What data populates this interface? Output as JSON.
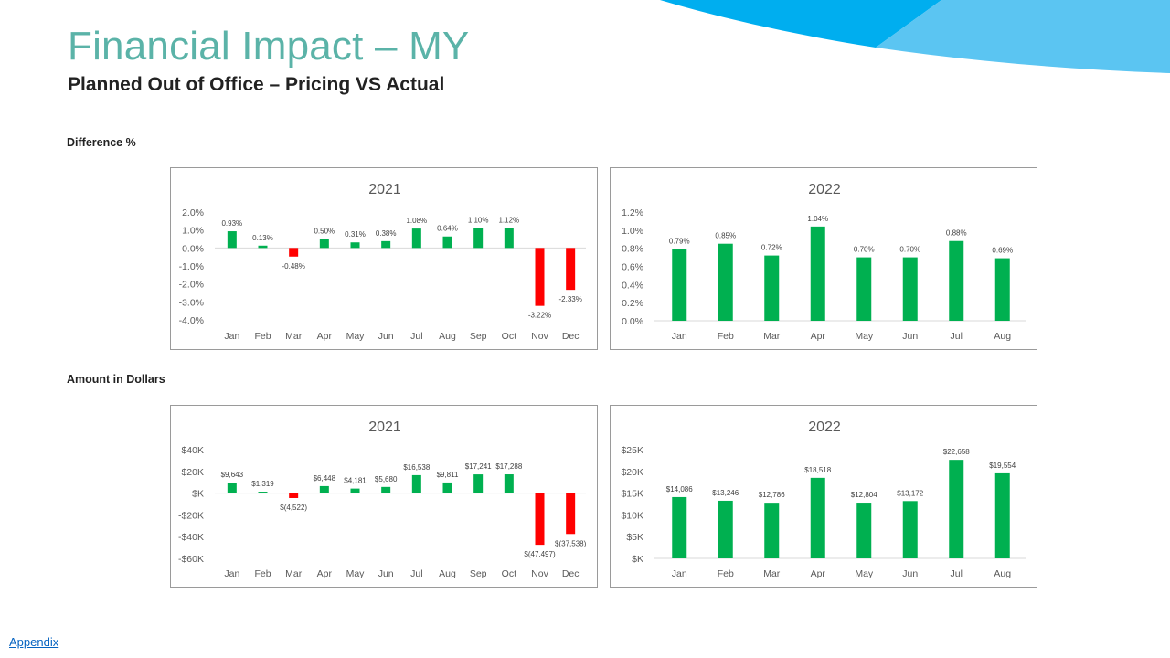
{
  "header": {
    "title": "Financial Impact – MY",
    "subtitle": "Planned Out of Office – Pricing VS Actual"
  },
  "sections": {
    "difference": "Difference %",
    "amount": "Amount in Dollars"
  },
  "footer": {
    "appendix_link": "Appendix"
  },
  "colors": {
    "title": "#5bb3a8",
    "positive": "#00b050",
    "negative": "#ff0000",
    "deco_dark": "#00aeef",
    "deco_light": "#5bc5f2"
  },
  "chart_data": [
    {
      "type": "bar",
      "title": "2021",
      "categories": [
        "Jan",
        "Feb",
        "Mar",
        "Apr",
        "May",
        "Jun",
        "Jul",
        "Aug",
        "Sep",
        "Oct",
        "Nov",
        "Dec"
      ],
      "values": [
        0.93,
        0.13,
        -0.48,
        0.5,
        0.31,
        0.38,
        1.08,
        0.64,
        1.1,
        1.12,
        -3.22,
        -2.33
      ],
      "labels": [
        "0.93%",
        "0.13%",
        "-0.48%",
        "0.50%",
        "0.31%",
        "0.38%",
        "1.08%",
        "0.64%",
        "1.10%",
        "1.12%",
        "-3.22%",
        "-2.33%"
      ],
      "yticks": [
        2,
        1,
        0,
        -1,
        -2,
        -3,
        -4
      ],
      "ytick_labels": [
        "2.0%",
        "1.0%",
        "0.0%",
        "-1.0%",
        "-2.0%",
        "-3.0%",
        "-4.0%"
      ],
      "ylim": [
        -4,
        2
      ],
      "grid": false,
      "legend": "none"
    },
    {
      "type": "bar",
      "title": "2022",
      "categories": [
        "Jan",
        "Feb",
        "Mar",
        "Apr",
        "May",
        "Jun",
        "Jul",
        "Aug"
      ],
      "values": [
        0.79,
        0.85,
        0.72,
        1.04,
        0.7,
        0.7,
        0.88,
        0.69
      ],
      "labels": [
        "0.79%",
        "0.85%",
        "0.72%",
        "1.04%",
        "0.70%",
        "0.70%",
        "0.88%",
        "0.69%"
      ],
      "yticks": [
        1.2,
        1.0,
        0.8,
        0.6,
        0.4,
        0.2,
        0.0
      ],
      "ytick_labels": [
        "1.2%",
        "1.0%",
        "0.8%",
        "0.6%",
        "0.4%",
        "0.2%",
        "0.0%"
      ],
      "ylim": [
        0,
        1.2
      ],
      "grid": false,
      "legend": "none"
    },
    {
      "type": "bar",
      "title": "2021",
      "categories": [
        "Jan",
        "Feb",
        "Mar",
        "Apr",
        "May",
        "Jun",
        "Jul",
        "Aug",
        "Sep",
        "Oct",
        "Nov",
        "Dec"
      ],
      "values": [
        9643,
        1319,
        -4522,
        6448,
        4181,
        5680,
        16538,
        9811,
        17241,
        17288,
        -47497,
        -37538
      ],
      "labels": [
        "$9,643",
        "$1,319",
        "$(4,522)",
        "$6,448",
        "$4,181",
        "$5,680",
        "$16,538",
        "$9,811",
        "$17,241",
        "$17,288",
        "$(47,497)",
        "$(37,538)"
      ],
      "yticks": [
        40000,
        20000,
        0,
        -20000,
        -40000,
        -60000
      ],
      "ytick_labels": [
        "$40K",
        "$20K",
        "$K",
        "-$20K",
        "-$40K",
        "-$60K"
      ],
      "ylim": [
        -60000,
        40000
      ],
      "grid": false,
      "legend": "none"
    },
    {
      "type": "bar",
      "title": "2022",
      "categories": [
        "Jan",
        "Feb",
        "Mar",
        "Apr",
        "May",
        "Jun",
        "Jul",
        "Aug"
      ],
      "values": [
        14086,
        13246,
        12786,
        18518,
        12804,
        13172,
        22658,
        19554
      ],
      "labels": [
        "$14,086",
        "$13,246",
        "$12,786",
        "$18,518",
        "$12,804",
        "$13,172",
        "$22,658",
        "$19,554"
      ],
      "yticks": [
        25000,
        20000,
        15000,
        10000,
        5000,
        0
      ],
      "ytick_labels": [
        "$25K",
        "$20K",
        "$15K",
        "$10K",
        "$5K",
        "$K"
      ],
      "ylim": [
        0,
        25000
      ],
      "grid": false,
      "legend": "none"
    }
  ]
}
